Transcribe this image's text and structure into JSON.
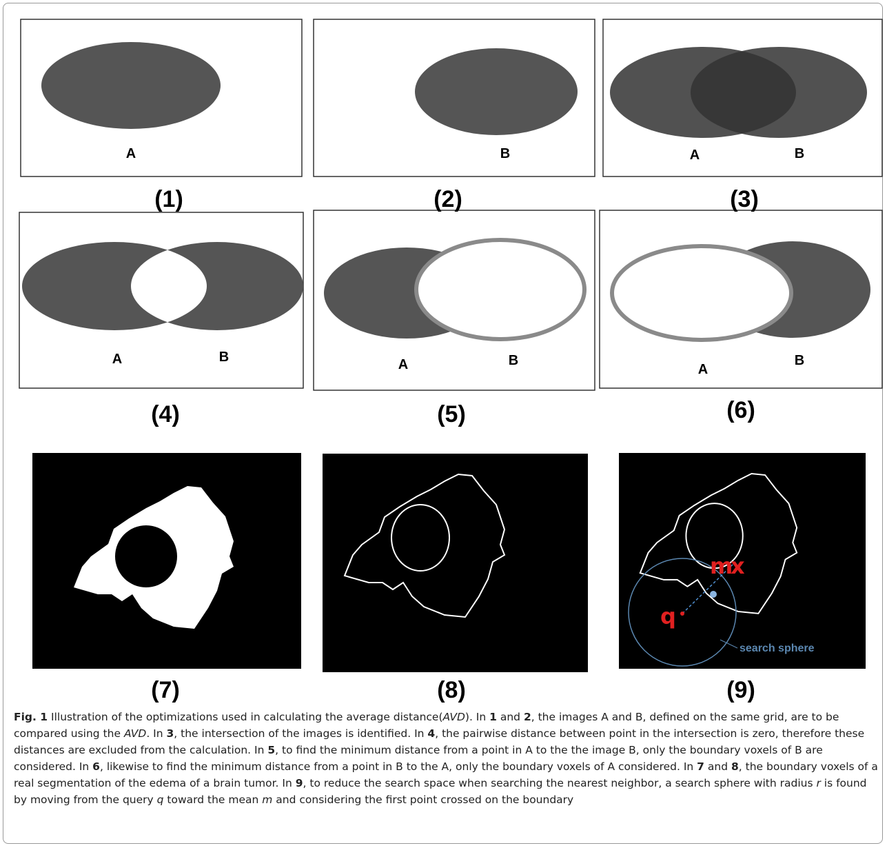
{
  "panels": [
    {
      "label": "(1)",
      "letters": [
        "A"
      ]
    },
    {
      "label": "(2)",
      "letters": [
        "B"
      ]
    },
    {
      "label": "(3)",
      "letters": [
        "A",
        "B"
      ]
    },
    {
      "label": "(4)",
      "letters": [
        "A",
        "B"
      ]
    },
    {
      "label": "(5)",
      "letters": [
        "A",
        "B"
      ]
    },
    {
      "label": "(6)",
      "letters": [
        "A",
        "B"
      ]
    },
    {
      "label": "(7)",
      "letters": []
    },
    {
      "label": "(8)",
      "letters": []
    },
    {
      "label": "(9)",
      "letters": []
    }
  ],
  "annotations": {
    "mean": "m",
    "cross": "x",
    "query": "q",
    "sphere": "search sphere"
  },
  "caption": [
    {
      "text": "Fig. 1",
      "style": "bold"
    },
    {
      "text": " Illustration of the optimizations used in calculating the average distance(",
      "style": "plain"
    },
    {
      "text": "AVD",
      "style": "italic"
    },
    {
      "text": "). In ",
      "style": "plain"
    },
    {
      "text": "1",
      "style": "bold"
    },
    {
      "text": " and ",
      "style": "plain"
    },
    {
      "text": "2",
      "style": "bold"
    },
    {
      "text": ", the images A and B, defined on the same grid, are to be compared using the ",
      "style": "plain"
    },
    {
      "text": "AVD",
      "style": "italic"
    },
    {
      "text": ". In ",
      "style": "plain"
    },
    {
      "text": "3",
      "style": "bold"
    },
    {
      "text": ", the intersection of the images is identified. In ",
      "style": "plain"
    },
    {
      "text": "4",
      "style": "bold"
    },
    {
      "text": ", the pairwise distance between point in the intersection is zero, therefore these distances are excluded from the calculation. In ",
      "style": "plain"
    },
    {
      "text": "5",
      "style": "bold"
    },
    {
      "text": ", to find the minimum distance from a point in A to the the image B, only the boundary voxels of B are considered. In ",
      "style": "plain"
    },
    {
      "text": "6",
      "style": "bold"
    },
    {
      "text": ", likewise to find the minimum distance from a point in B to the A, only the boundary voxels of A considered. In ",
      "style": "plain"
    },
    {
      "text": "7",
      "style": "bold"
    },
    {
      "text": " and ",
      "style": "plain"
    },
    {
      "text": "8",
      "style": "bold"
    },
    {
      "text": ", the boundary voxels of a real segmentation of the edema of a brain tumor. In ",
      "style": "plain"
    },
    {
      "text": "9",
      "style": "bold"
    },
    {
      "text": ", to reduce the search space when searching the nearest neighbor, a search sphere with radius ",
      "style": "plain"
    },
    {
      "text": "r",
      "style": "italic"
    },
    {
      "text": " is found by moving from the query ",
      "style": "plain"
    },
    {
      "text": "q",
      "style": "italic"
    },
    {
      "text": " toward the mean ",
      "style": "plain"
    },
    {
      "text": "m",
      "style": "italic"
    },
    {
      "text": " and considering the first point crossed on the boundary",
      "style": "plain"
    }
  ]
}
